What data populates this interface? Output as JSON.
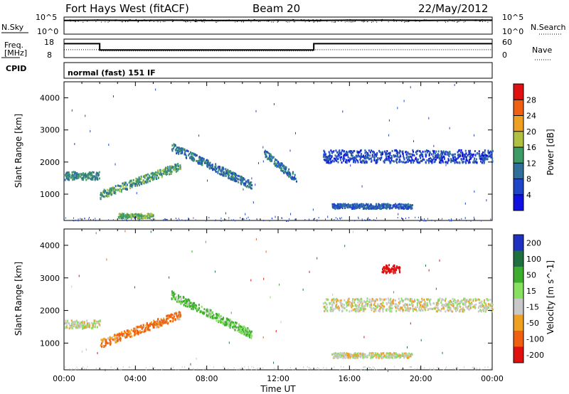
{
  "header": {
    "station": "Fort Hays West (fitACF)",
    "beam": "Beam 20",
    "date": "22/May/2012"
  },
  "noise_panel": {
    "left_label": "N.Sky",
    "left_ticks": [
      "10^5",
      "10^0"
    ],
    "right_label": "N.Search",
    "right_ticks": [
      "10^5",
      "10^0"
    ]
  },
  "freq_panel": {
    "left_label_1": "Freq.",
    "left_label_2": "[MHz]",
    "left_ticks": [
      "18",
      "8"
    ],
    "right_label": "Nave",
    "right_ticks": [
      "60",
      "0"
    ]
  },
  "cpid_panel": {
    "label": "CPID",
    "mode_text": "normal (fast) 151 IF"
  },
  "chart_data": [
    {
      "type": "line",
      "panel": "N.Sky / N.Search",
      "x_hours": [
        0,
        2,
        4,
        6,
        8,
        10,
        12,
        14,
        16,
        18,
        20,
        22,
        24
      ],
      "series": [
        {
          "name": "N.Sky",
          "values_log10": [
            4.3,
            4.4,
            4.3,
            4.4,
            4.3,
            4.3,
            4.4,
            4.3,
            4.4,
            4.4,
            4.3,
            4.4,
            4.4
          ]
        },
        {
          "name": "N.Search",
          "values_log10": [
            4.2,
            4.3,
            4.2,
            4.3,
            4.2,
            4.2,
            4.3,
            4.2,
            4.3,
            4.3,
            4.2,
            4.3,
            4.3
          ]
        }
      ],
      "ylim_log10": [
        0,
        5
      ]
    },
    {
      "type": "line",
      "panel": "Freq. / Nave",
      "series": [
        {
          "name": "Freq.",
          "points": [
            [
              0,
              16
            ],
            [
              2,
              16
            ],
            [
              2,
              12
            ],
            [
              14,
              12
            ],
            [
              14,
              16
            ],
            [
              24,
              16
            ]
          ]
        },
        {
          "name": "Nave",
          "points": [
            [
              0,
              25
            ],
            [
              2,
              25
            ],
            [
              2,
              20
            ],
            [
              14,
              20
            ],
            [
              14,
              25
            ],
            [
              24,
              25
            ]
          ]
        }
      ],
      "freq_range": [
        8,
        18
      ],
      "nave_range": [
        0,
        60
      ]
    },
    {
      "type": "heatmap",
      "panel": "Power",
      "xlabel": "",
      "ylabel": "Slant Range [km]",
      "xlim_hours": [
        0,
        24
      ],
      "ylim_km": [
        180,
        4500
      ],
      "y_ticks": [
        1000,
        2000,
        3000,
        4000
      ],
      "colorbar_label": "Power [dB]",
      "colorbar_ticks": [
        4,
        8,
        12,
        16,
        20,
        24,
        28
      ],
      "colorbar_colors": [
        "#1010e0",
        "#1f45c8",
        "#2f6f9a",
        "#3d9b66",
        "#b0c040",
        "#f0a020",
        "#f06010",
        "#e01010"
      ],
      "scatter_features": [
        {
          "t_start": 0.0,
          "t_end": 2.0,
          "range_km": 1600,
          "width_km": 250,
          "level_db": 12
        },
        {
          "t_start": 2.0,
          "t_end": 6.5,
          "range_km_start": 1000,
          "range_km_end": 1900,
          "width_km": 250,
          "level_db": 14
        },
        {
          "t_start": 6.0,
          "t_end": 10.5,
          "range_km_start": 2500,
          "range_km_end": 1300,
          "width_km": 250,
          "level_db": 10
        },
        {
          "t_start": 11.2,
          "t_end": 13.0,
          "range_km_start": 2300,
          "range_km_end": 1500,
          "width_km": 250,
          "level_db": 10
        },
        {
          "t_start": 14.5,
          "t_end": 24.0,
          "range_km": 2200,
          "width_km": 400,
          "level_db": 6
        },
        {
          "t_start": 15.0,
          "t_end": 19.5,
          "range_km": 650,
          "width_km": 150,
          "level_db": 8
        },
        {
          "t_start": 3.0,
          "t_end": 5.0,
          "range_km": 350,
          "width_km": 150,
          "level_db": 16
        }
      ]
    },
    {
      "type": "heatmap",
      "panel": "Velocity",
      "xlabel": "Time UT",
      "ylabel": "Slant Range [km]",
      "x_ticks": [
        "00:00",
        "04:00",
        "08:00",
        "12:00",
        "16:00",
        "20:00",
        "00:00"
      ],
      "xlim_hours": [
        0,
        24
      ],
      "ylim_km": [
        180,
        4500
      ],
      "y_ticks": [
        1000,
        2000,
        3000,
        4000
      ],
      "colorbar_label": "Velocity [m s^-1]",
      "colorbar_ticks": [
        200,
        100,
        50,
        15,
        -15,
        -50,
        -100,
        -200
      ],
      "colorbar_colors": [
        "#2030c0",
        "#1f6f3f",
        "#3cad2c",
        "#88e060",
        "#c8c8c8",
        "#f0a020",
        "#f06010",
        "#e01010"
      ],
      "scatter_features": [
        {
          "t_start": 0.0,
          "t_end": 2.0,
          "range_km": 1600,
          "width_km": 250,
          "velocity": 0
        },
        {
          "t_start": 2.0,
          "t_end": 6.5,
          "range_km_start": 1000,
          "range_km_end": 1900,
          "width_km": 250,
          "velocity": -40
        },
        {
          "t_start": 6.0,
          "t_end": 10.5,
          "range_km_start": 2500,
          "range_km_end": 1300,
          "width_km": 250,
          "velocity": 40
        },
        {
          "t_start": 14.5,
          "t_end": 24.0,
          "range_km": 2200,
          "width_km": 400,
          "velocity": 0
        },
        {
          "t_start": 15.0,
          "t_end": 19.5,
          "range_km": 650,
          "width_km": 150,
          "velocity": 0
        },
        {
          "t_start": 17.8,
          "t_end": 18.8,
          "range_km": 3300,
          "width_km": 250,
          "velocity": -200
        }
      ]
    }
  ],
  "colors": {
    "axis": "#000000",
    "background": "#ffffff"
  }
}
